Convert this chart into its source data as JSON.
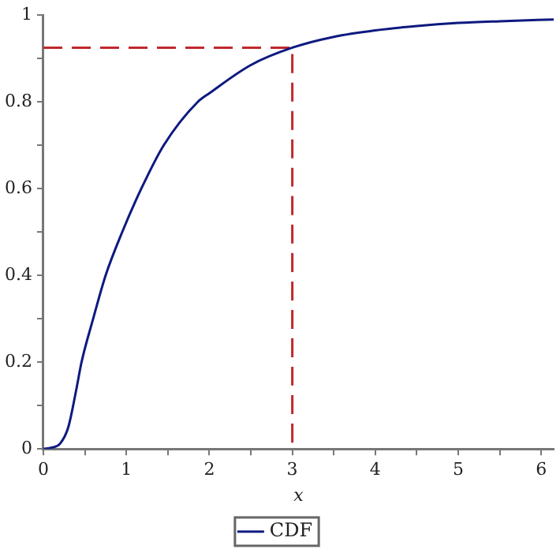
{
  "chart_data": {
    "type": "line",
    "xlabel": "x",
    "xlim": [
      0,
      6.15
    ],
    "ylim": [
      0,
      1
    ],
    "xticks": [
      0,
      {
        "value": 0.5,
        "label": null
      },
      1,
      {
        "value": 1.5,
        "label": null
      },
      2,
      {
        "value": 2.5,
        "label": null
      },
      3,
      {
        "value": 3.5,
        "label": null
      },
      4,
      {
        "value": 4.5,
        "label": null
      },
      5,
      {
        "value": 5.5,
        "label": null
      },
      6
    ],
    "yticks": [
      0,
      {
        "value": 0.1,
        "label": null
      },
      0.2,
      {
        "value": 0.3,
        "label": null
      },
      0.4,
      {
        "value": 0.5,
        "label": null
      },
      0.6,
      {
        "value": 0.7,
        "label": null
      },
      0.8,
      {
        "value": 0.9,
        "label": null
      },
      1
    ],
    "grid": false,
    "legend": "bottom",
    "marker": "none",
    "series": [
      {
        "name": "CDF",
        "color": "#0d1a80",
        "line_style": "solid",
        "x": [
          0,
          0.1,
          0.2,
          0.3,
          0.4,
          0.46,
          0.6,
          0.75,
          0.95,
          1.18,
          1.45,
          1.86,
          2,
          2.5,
          3,
          3.5,
          4,
          4.5,
          5,
          5.5,
          6.15
        ],
        "values": [
          0,
          0.003,
          0.012,
          0.05,
          0.14,
          0.2,
          0.3,
          0.4,
          0.5,
          0.6,
          0.7,
          0.8,
          0.82,
          0.885,
          0.925,
          0.95,
          0.965,
          0.975,
          0.982,
          0.986,
          0.99
        ]
      },
      {
        "color": "#c0282d",
        "line_style": "dashed",
        "x": [
          0,
          3,
          3
        ],
        "values": [
          0.925,
          0.925,
          0
        ]
      }
    ]
  }
}
